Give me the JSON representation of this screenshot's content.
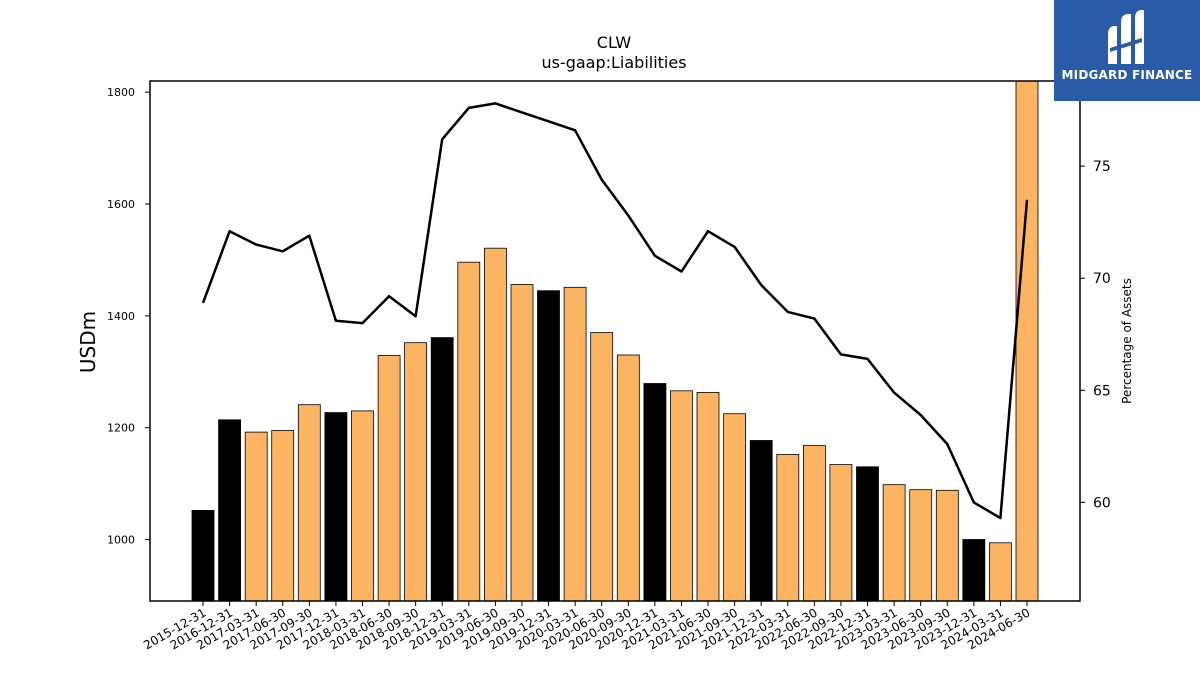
{
  "chart_data": {
    "type": "bar",
    "title": "CLW",
    "subtitle": "us-gaap:Liabilities",
    "ylabel": "USDm",
    "y2label": "Percentage of Assets",
    "ylim": [
      890,
      1820
    ],
    "y2lim": [
      55.6,
      78.8
    ],
    "yticks": [
      1000,
      1200,
      1400,
      1600,
      1800
    ],
    "y2ticks": [
      60,
      65,
      70,
      75
    ],
    "categories": [
      "2015-12-31",
      "2016-12-31",
      "2017-03-31",
      "2017-06-30",
      "2017-09-30",
      "2017-12-31",
      "2018-03-31",
      "2018-06-30",
      "2018-09-30",
      "2018-12-31",
      "2019-03-31",
      "2019-06-30",
      "2019-09-30",
      "2019-12-31",
      "2020-03-31",
      "2020-06-30",
      "2020-09-30",
      "2020-12-31",
      "2021-03-31",
      "2021-06-30",
      "2021-09-30",
      "2021-12-31",
      "2022-03-31",
      "2022-06-30",
      "2022-09-30",
      "2022-12-31",
      "2023-03-31",
      "2023-06-30",
      "2023-09-30",
      "2023-12-31",
      "2024-03-31",
      "2024-06-30"
    ],
    "series": [
      {
        "kind": "bar",
        "values": [
          1052,
          1214,
          1192,
          1195,
          1241,
          1227,
          1230,
          1329,
          1352,
          1361,
          1496,
          1521,
          1456,
          1445,
          1451,
          1370,
          1330,
          1279,
          1266,
          1263,
          1225,
          1177,
          1152,
          1168,
          1134,
          1130,
          1098,
          1089,
          1088,
          1000,
          994,
          1830
        ],
        "colors": [
          "#000000",
          "#000000",
          "#fdb462",
          "#fdb462",
          "#fdb462",
          "#000000",
          "#fdb462",
          "#fdb462",
          "#fdb462",
          "#000000",
          "#fdb462",
          "#fdb462",
          "#fdb462",
          "#000000",
          "#fdb462",
          "#fdb462",
          "#fdb462",
          "#000000",
          "#fdb462",
          "#fdb462",
          "#fdb462",
          "#000000",
          "#fdb462",
          "#fdb462",
          "#fdb462",
          "#000000",
          "#fdb462",
          "#fdb462",
          "#fdb462",
          "#000000",
          "#fdb462",
          "#fdb462"
        ]
      },
      {
        "kind": "line",
        "axis": "right",
        "color": "#000000",
        "values": [
          68.9,
          72.1,
          71.5,
          71.2,
          71.9,
          68.1,
          68.0,
          69.2,
          68.3,
          76.2,
          77.6,
          77.8,
          77.4,
          77.0,
          76.6,
          74.4,
          72.8,
          71.0,
          70.3,
          72.1,
          71.4,
          69.7,
          68.5,
          68.2,
          66.6,
          66.4,
          64.9,
          63.9,
          62.6,
          60.0,
          59.3,
          73.5
        ]
      }
    ],
    "accent_colors": {
      "orange": "#fdb462",
      "black": "#000000"
    }
  },
  "logo": {
    "text": "MIDGARD FINANCE",
    "background": "#2a5ba8"
  }
}
